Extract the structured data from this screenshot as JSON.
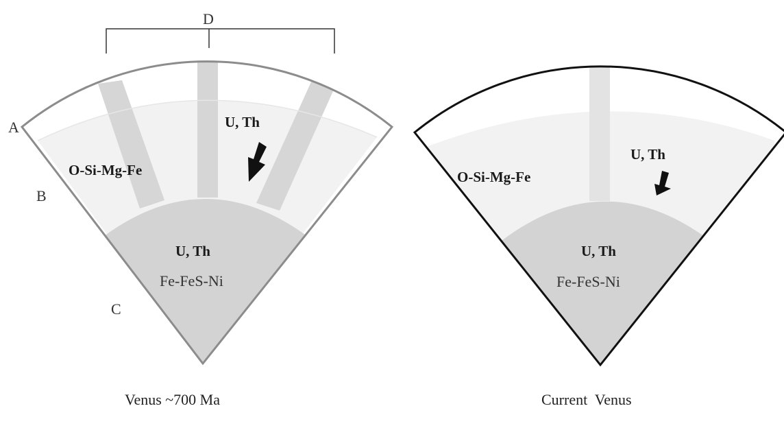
{
  "panels": [
    {
      "caption": "Venus ~700 Ma",
      "mantle_label": "O-Si-Mg-Fe",
      "mantle_element_label": "U, Th",
      "core_element_label": "U, Th",
      "core_label": "Fe-FeS-Ni"
    },
    {
      "caption": "Current  Venus",
      "mantle_label": "O-Si-Mg-Fe",
      "mantle_element_label": "U, Th",
      "core_element_label": "U, Th",
      "core_label": "Fe-FeS-Ni"
    }
  ],
  "letters": {
    "a": "A",
    "b": "B",
    "c": "C",
    "d": "D"
  },
  "colors": {
    "crust": "#ffffff",
    "mantle": "#f2f2f2",
    "core": "#d3d3d3",
    "plume": "#d6d6d6",
    "outline_left": "#8c8c8c",
    "outline_right": "#111111",
    "arrow": "#111111"
  },
  "icons": {
    "sink_arrow": "down-arrow-icon"
  }
}
